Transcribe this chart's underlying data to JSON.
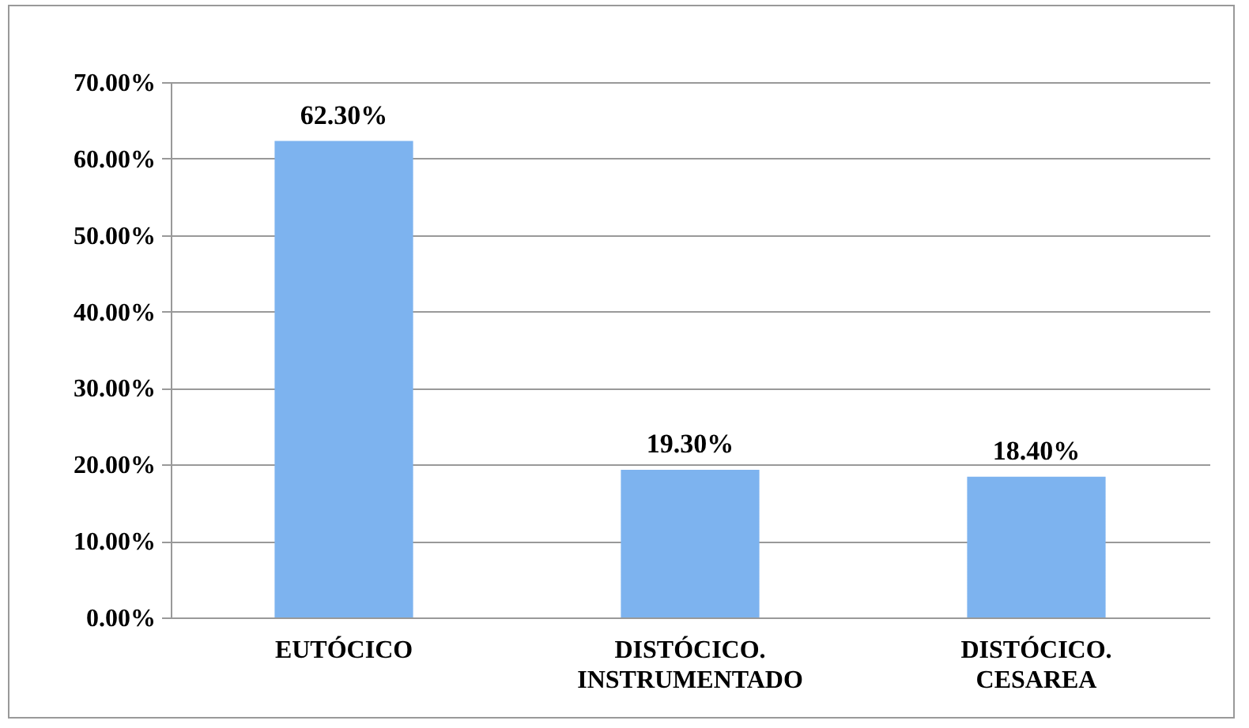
{
  "chart_data": {
    "type": "bar",
    "categories": [
      "EUTÓCICO",
      "DISTÓCICO. INSTRUMENTADO",
      "DISTÓCICO. CESAREA"
    ],
    "values": [
      62.3,
      19.3,
      18.4
    ],
    "value_labels": [
      "62.30%",
      "19.30%",
      "18.40%"
    ],
    "color": "#7db3ef",
    "ylim": [
      0,
      70
    ],
    "yticks": [
      {
        "value": 0,
        "label": "0.00%"
      },
      {
        "value": 10,
        "label": "10.00%"
      },
      {
        "value": 20,
        "label": "20.00%"
      },
      {
        "value": 30,
        "label": "30.00%"
      },
      {
        "value": 40,
        "label": "40.00%"
      },
      {
        "value": 50,
        "label": "50.00%"
      },
      {
        "value": 60,
        "label": "60.00%"
      },
      {
        "value": 70,
        "label": "70.00%"
      }
    ],
    "grid": "y"
  }
}
